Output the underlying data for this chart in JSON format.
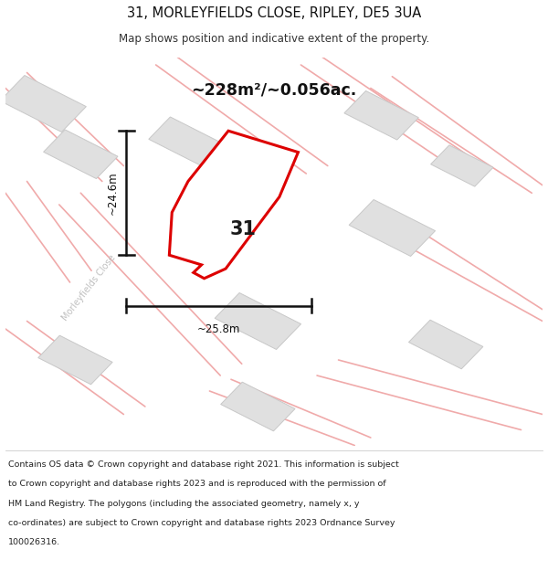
{
  "title": "31, MORLEYFIELDS CLOSE, RIPLEY, DE5 3UA",
  "subtitle": "Map shows position and indicative extent of the property.",
  "area_text": "~228m²/~0.056ac.",
  "width_label": "~25.8m",
  "height_label": "~24.6m",
  "number_label": "31",
  "street_label": "Morleyfields Close",
  "footer_line1": "Contains OS data © Crown copyright and database right 2021. This information is subject",
  "footer_line2": "to Crown copyright and database rights 2023 and is reproduced with the permission of",
  "footer_line3": "HM Land Registry. The polygons (including the associated geometry, namely x, y",
  "footer_line4": "co-ordinates) are subject to Crown copyright and database rights 2023 Ordnance Survey",
  "footer_line5": "100026316.",
  "map_bg": "#f2f2f2",
  "building_fill": "#e0e0e0",
  "building_edge": "#c8c8c8",
  "road_color": "#f0aaaa",
  "plot_color": "#dd0000",
  "plot_fill": "#ffffff",
  "title_fontsize": 10.5,
  "subtitle_fontsize": 8.5,
  "footer_fontsize": 6.8
}
